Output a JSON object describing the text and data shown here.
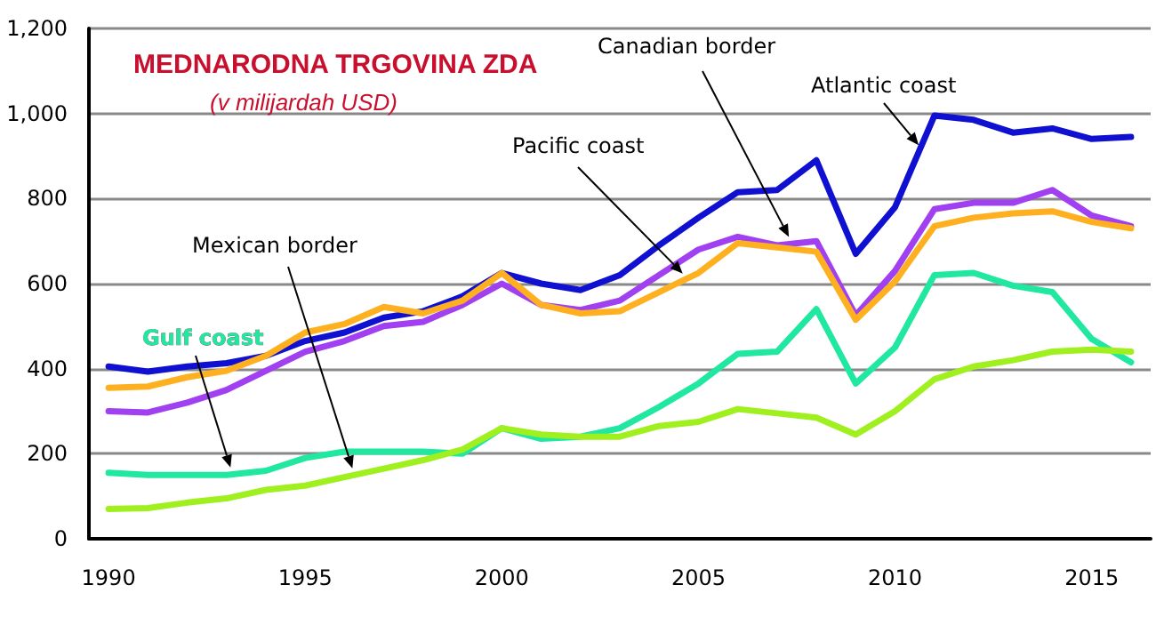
{
  "chart_data": {
    "type": "line",
    "title": "MEDNARODNA TRGOVINA ZDA",
    "subtitle": "(v milijardah USD)",
    "x": [
      1990,
      1991,
      1992,
      1993,
      1994,
      1995,
      1996,
      1997,
      1998,
      1999,
      2000,
      2001,
      2002,
      2003,
      2004,
      2005,
      2006,
      2007,
      2008,
      2009,
      2010,
      2011,
      2012,
      2013,
      2014,
      2015,
      2016
    ],
    "series": [
      {
        "name": "Atlantic coast",
        "color": "#1010d0",
        "values": [
          405,
          393,
          405,
          413,
          430,
          465,
          485,
          520,
          535,
          570,
          625,
          600,
          585,
          620,
          690,
          755,
          815,
          820,
          890,
          670,
          780,
          995,
          985,
          955,
          965,
          940,
          945
        ]
      },
      {
        "name": "Canadian border",
        "color": "#a040f0",
        "values": [
          300,
          297,
          320,
          350,
          395,
          440,
          465,
          500,
          510,
          550,
          600,
          550,
          538,
          560,
          620,
          680,
          710,
          690,
          700,
          525,
          630,
          775,
          790,
          790,
          820,
          760,
          735
        ]
      },
      {
        "name": "Pacific coast",
        "color": "#ffb020",
        "values": [
          355,
          358,
          380,
          395,
          430,
          485,
          505,
          545,
          530,
          560,
          625,
          550,
          530,
          535,
          580,
          625,
          695,
          685,
          675,
          515,
          605,
          735,
          755,
          765,
          770,
          745,
          730
        ]
      },
      {
        "name": "Gulf coast",
        "color": "#20e8a0",
        "values": [
          155,
          150,
          150,
          150,
          160,
          190,
          205,
          205,
          205,
          200,
          260,
          235,
          240,
          260,
          310,
          365,
          435,
          440,
          540,
          365,
          450,
          620,
          625,
          595,
          580,
          470,
          415
        ]
      },
      {
        "name": "Mexican border",
        "color": "#a0f020",
        "values": [
          70,
          72,
          85,
          95,
          115,
          125,
          145,
          165,
          185,
          210,
          260,
          245,
          240,
          240,
          265,
          275,
          305,
          295,
          285,
          245,
          300,
          375,
          405,
          420,
          440,
          445,
          440
        ]
      }
    ],
    "xlim": [
      1989.5,
      2016.5
    ],
    "xticks": [
      1990,
      1995,
      2000,
      2005,
      2010,
      2015
    ],
    "ylim": [
      0,
      1200
    ],
    "yticks": [
      0,
      200,
      400,
      600,
      800,
      {
        "value": 1000,
        "label": "1,000"
      },
      {
        "value": 1200,
        "label": "1,200"
      }
    ],
    "grid": "y",
    "legend": false,
    "marker": "none",
    "line_style": "solid"
  }
}
